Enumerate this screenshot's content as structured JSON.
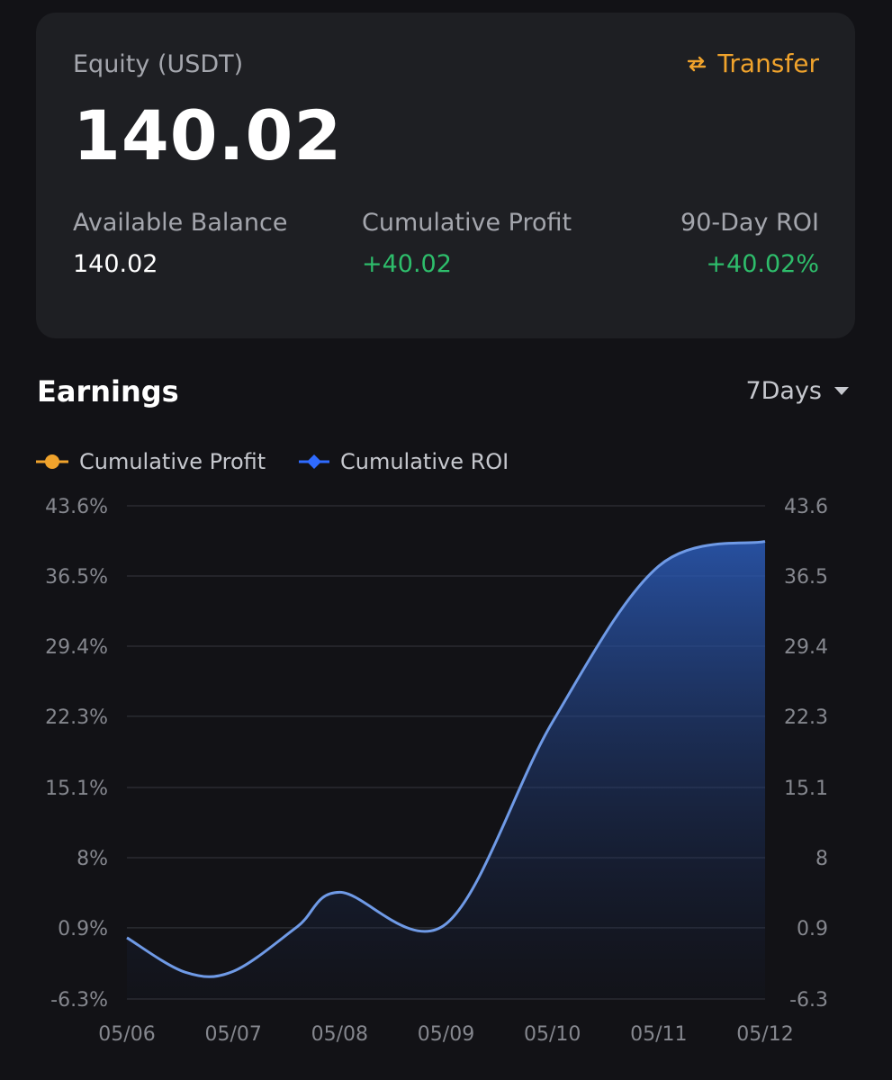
{
  "summary": {
    "equity_label": "Equity (USDT)",
    "equity_value": "140.02",
    "transfer_label": "Transfer",
    "available_label": "Available Balance",
    "available_value": "140.02",
    "profit_label": "Cumulative Profit",
    "profit_value": "+40.02",
    "roi_label": "90-Day ROI",
    "roi_value": "+40.02%"
  },
  "earnings": {
    "title": "Earnings",
    "range": "7Days",
    "legend": [
      {
        "label": "Cumulative Profit",
        "color": "#f0a32c",
        "icon": "circle-marker-icon"
      },
      {
        "label": "Cumulative ROI",
        "color": "#2f6bff",
        "icon": "diamond-marker-icon"
      }
    ]
  },
  "colors": {
    "accent": "#f0a32c",
    "positive": "#2ebd6b",
    "roi_line": "#6f9ae6",
    "background": "#121216",
    "card": "#1e1f23"
  },
  "chart_data": {
    "type": "area",
    "categories": [
      "05/06",
      "05/07",
      "05/08",
      "05/09",
      "05/10",
      "05/11",
      "05/12"
    ],
    "x_points": [
      0,
      0.55,
      1,
      1.6,
      2,
      3,
      4,
      5,
      6
    ],
    "y_points": [
      -0.1,
      -3.6,
      -3.5,
      1.0,
      4.5,
      1.3,
      21.7,
      37.5,
      40.0
    ],
    "series": [
      {
        "name": "Cumulative ROI",
        "values": [
          -0.1,
          -3.5,
          4.5,
          1.3,
          21.7,
          37.5,
          40.0
        ]
      }
    ],
    "y_left_ticks": [
      "43.6%",
      "36.5%",
      "29.4%",
      "22.3%",
      "15.1%",
      "8%",
      "0.9%",
      "-6.3%"
    ],
    "y_right_ticks": [
      "43.6",
      "36.5",
      "29.4",
      "22.3",
      "15.1",
      "8",
      "0.9",
      "-6.3"
    ],
    "y_tick_values": [
      43.6,
      36.5,
      29.4,
      22.3,
      15.1,
      8,
      0.9,
      -6.3
    ],
    "ylim": [
      -6.3,
      43.6
    ],
    "grid": true,
    "legend_position": "top-left"
  }
}
